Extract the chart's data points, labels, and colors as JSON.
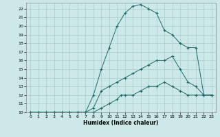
{
  "xlabel": "Humidex (Indice chaleur)",
  "bg_color": "#cce8e8",
  "grid_color": "#aacccc",
  "line_color": "#1a6b6b",
  "xlim": [
    -0.5,
    23.5
  ],
  "ylim": [
    10,
    22.7
  ],
  "xticks": [
    0,
    1,
    2,
    3,
    4,
    5,
    6,
    7,
    8,
    9,
    10,
    11,
    12,
    13,
    14,
    15,
    16,
    17,
    18,
    19,
    20,
    21,
    22,
    23
  ],
  "yticks": [
    10,
    11,
    12,
    13,
    14,
    15,
    16,
    17,
    18,
    19,
    20,
    21,
    22
  ],
  "curve1_x": [
    0,
    1,
    2,
    3,
    4,
    5,
    6,
    7,
    8,
    9,
    10,
    11,
    12,
    13,
    14,
    15,
    16,
    17,
    18,
    19,
    20,
    21,
    22,
    23
  ],
  "curve1_y": [
    10,
    10,
    10,
    10,
    10,
    10,
    10,
    10,
    12,
    15,
    17.5,
    20,
    21.5,
    22.3,
    22.5,
    22,
    21.5,
    19.5,
    19,
    18,
    17.5,
    17.5,
    12,
    12
  ],
  "curve2_x": [
    0,
    1,
    2,
    3,
    4,
    5,
    6,
    7,
    8,
    9,
    10,
    11,
    12,
    13,
    14,
    15,
    16,
    17,
    18,
    19,
    20,
    21,
    22,
    23
  ],
  "curve2_y": [
    10,
    10,
    10,
    10,
    10,
    10,
    10,
    10,
    10.5,
    12.5,
    13,
    13.5,
    14,
    14.5,
    15,
    15.5,
    16,
    16,
    16.5,
    15,
    13.5,
    13,
    12,
    12
  ],
  "curve3_x": [
    0,
    1,
    2,
    3,
    4,
    5,
    6,
    7,
    8,
    9,
    10,
    11,
    11.5,
    12,
    13,
    14,
    15,
    16,
    17,
    18,
    19,
    20,
    21,
    22,
    23
  ],
  "curve3_y": [
    10,
    10,
    10,
    10,
    10,
    10,
    10,
    10,
    10,
    10.5,
    11,
    11.5,
    12,
    12,
    12,
    12.5,
    13,
    13,
    13.5,
    13,
    12.5,
    12,
    12,
    12,
    12
  ]
}
